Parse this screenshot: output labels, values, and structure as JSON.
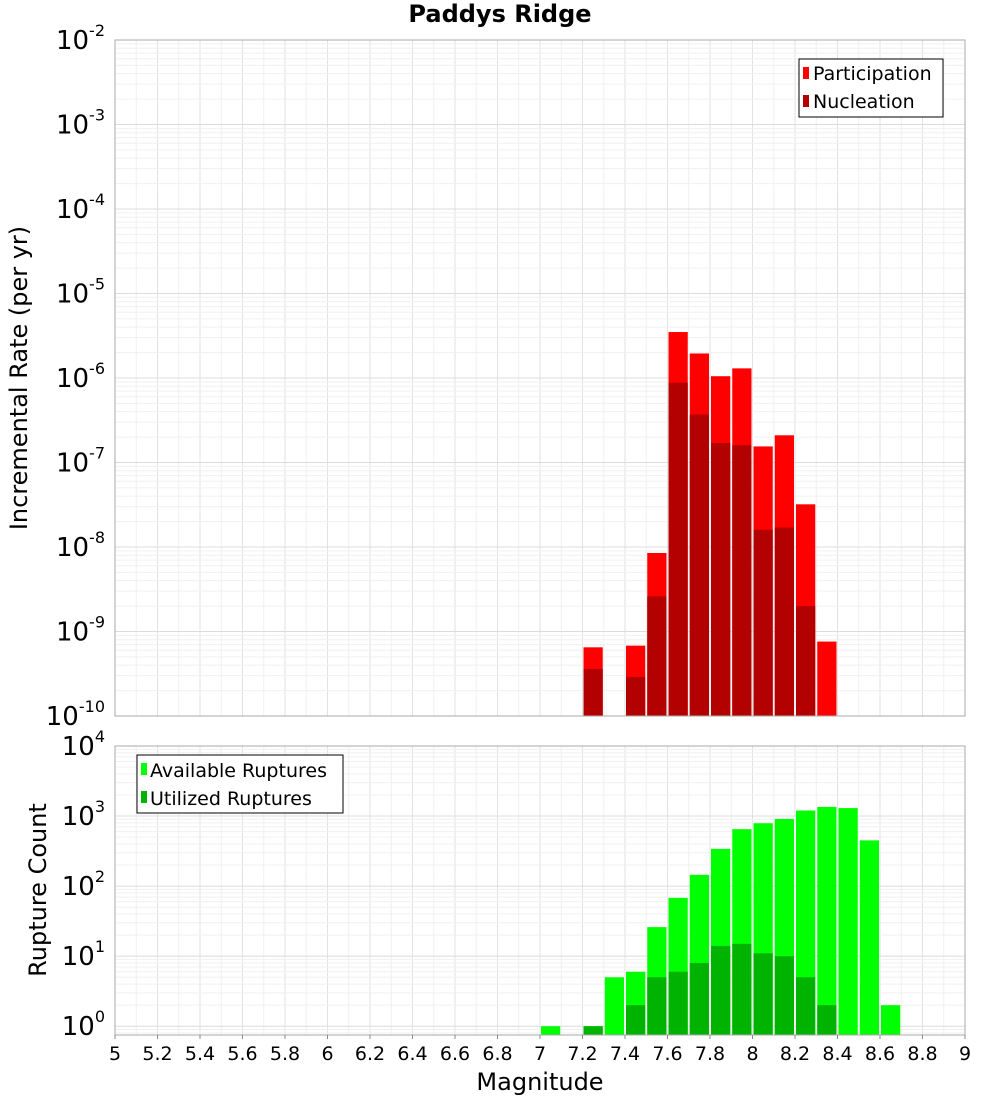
{
  "chart_data": [
    {
      "type": "bar",
      "title": "Paddys Ridge",
      "xlabel": "",
      "ylabel": "Incremental Rate (per yr)",
      "yscale": "log",
      "xlim": [
        5,
        9
      ],
      "ylim": [
        1e-10,
        0.01
      ],
      "ytick_exponents": [
        -10,
        -9,
        -8,
        -7,
        -6,
        -5,
        -4,
        -3,
        -2
      ],
      "grid": true,
      "legend_position": "top-right",
      "bin_width": 0.1,
      "x": [
        7.25,
        7.45,
        7.55,
        7.65,
        7.75,
        7.85,
        7.95,
        8.05,
        8.15,
        8.25,
        8.35
      ],
      "series": [
        {
          "name": "Participation",
          "color": "#ff0000",
          "values": [
            6.5e-10,
            6.8e-10,
            8.5e-09,
            3.5e-06,
            1.95e-06,
            1.05e-06,
            1.3e-06,
            1.55e-07,
            2.1e-07,
            3.2e-08,
            7.6e-10
          ]
        },
        {
          "name": "Nucleation",
          "color": "#b30000",
          "values": [
            3.6e-10,
            2.9e-10,
            2.6e-09,
            8.8e-07,
            3.7e-07,
            1.7e-07,
            1.6e-07,
            1.6e-08,
            1.7e-08,
            2e-09,
            null
          ]
        }
      ]
    },
    {
      "type": "bar",
      "title": "",
      "xlabel": "Magnitude",
      "ylabel": "Rupture Count",
      "yscale": "log",
      "xlim": [
        5,
        9
      ],
      "ylim": [
        0.75,
        10000
      ],
      "ytick_exponents": [
        0,
        1,
        2,
        3,
        4
      ],
      "xticks": [
        "5",
        "5.2",
        "5.4",
        "5.6",
        "5.8",
        "6",
        "6.2",
        "6.4",
        "6.6",
        "6.8",
        "7",
        "7.2",
        "7.4",
        "7.6",
        "7.8",
        "8",
        "8.2",
        "8.4",
        "8.6",
        "8.8",
        "9"
      ],
      "grid": true,
      "legend_position": "top-left",
      "bin_width": 0.1,
      "x": [
        7.05,
        7.25,
        7.35,
        7.45,
        7.55,
        7.65,
        7.75,
        7.85,
        7.95,
        8.05,
        8.15,
        8.25,
        8.35,
        8.45,
        8.55,
        8.65
      ],
      "series": [
        {
          "name": "Available Ruptures",
          "color": "#00ff00",
          "values": [
            1,
            1,
            5,
            6,
            26,
            68,
            145,
            340,
            650,
            790,
            910,
            1200,
            1350,
            1300,
            450,
            2
          ]
        },
        {
          "name": "Utilized Ruptures",
          "color": "#00b300",
          "values": [
            null,
            1,
            null,
            2,
            5,
            6,
            8,
            14,
            15,
            11,
            10,
            5,
            2,
            null,
            null,
            null
          ]
        }
      ]
    }
  ]
}
